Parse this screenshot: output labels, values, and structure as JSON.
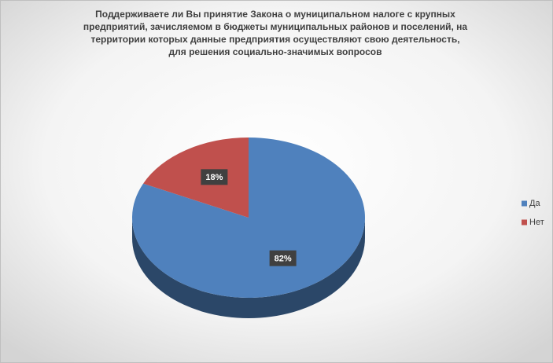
{
  "chart_data": {
    "type": "pie",
    "title": "Поддерживаете ли Вы принятие Закона о муниципальном налоге с крупных предприятий, зачисляемом в бюджеты  муниципальных районов и поселений, на территории которых данные предприятия осуществляют свою деятельность, для решения социально-значимых вопросов",
    "categories": [
      "Да",
      "Нет"
    ],
    "values": [
      82,
      18
    ],
    "value_labels": [
      "82%",
      "18%"
    ],
    "colors": [
      "#4f81bd",
      "#c0504d"
    ],
    "legend": "right"
  }
}
